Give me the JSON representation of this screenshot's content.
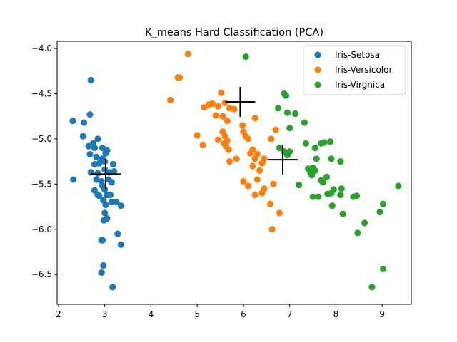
{
  "chart_data": {
    "type": "scatter",
    "title": "K_means Hard Classification (PCA)",
    "xlabel": "",
    "ylabel": "",
    "xlim": [
      1.97,
      9.63
    ],
    "ylim": [
      -6.83,
      -3.92
    ],
    "xticks": [
      2,
      3,
      4,
      5,
      6,
      7,
      8,
      9
    ],
    "yticks": [
      -4.0,
      -4.5,
      -5.0,
      -5.5,
      -6.0,
      -6.5
    ],
    "ytick_labels": [
      "−4.0",
      "−4.5",
      "−5.0",
      "−5.5",
      "−6.0",
      "−6.5"
    ],
    "grid": false,
    "legend_position": "upper right",
    "series": [
      {
        "name": "Iris-Setosa",
        "color": "#1f77b4",
        "marker": "circle",
        "points": [
          [
            2.7,
            -4.35
          ],
          [
            2.31,
            -4.8
          ],
          [
            2.55,
            -4.82
          ],
          [
            2.68,
            -4.73
          ],
          [
            2.53,
            -4.97
          ],
          [
            2.65,
            -5.08
          ],
          [
            2.75,
            -5.05
          ],
          [
            2.85,
            -5.0
          ],
          [
            2.78,
            -5.1
          ],
          [
            2.95,
            -5.1
          ],
          [
            3.05,
            -5.13
          ],
          [
            2.68,
            -5.17
          ],
          [
            2.82,
            -5.2
          ],
          [
            2.95,
            -5.22
          ],
          [
            3.02,
            -5.16
          ],
          [
            2.78,
            -5.28
          ],
          [
            2.88,
            -5.27
          ],
          [
            3.0,
            -5.25
          ],
          [
            3.18,
            -5.28
          ],
          [
            2.7,
            -5.37
          ],
          [
            2.85,
            -5.38
          ],
          [
            3.0,
            -5.34
          ],
          [
            3.1,
            -5.37
          ],
          [
            3.2,
            -5.36
          ],
          [
            2.32,
            -5.45
          ],
          [
            2.82,
            -5.45
          ],
          [
            2.93,
            -5.47
          ],
          [
            3.08,
            -5.45
          ],
          [
            3.15,
            -5.48
          ],
          [
            2.95,
            -5.52
          ],
          [
            3.0,
            -5.56
          ],
          [
            2.78,
            -5.57
          ],
          [
            2.85,
            -5.62
          ],
          [
            2.88,
            -5.63
          ],
          [
            3.05,
            -5.62
          ],
          [
            3.12,
            -5.62
          ],
          [
            2.97,
            -5.68
          ],
          [
            3.02,
            -5.73
          ],
          [
            3.15,
            -5.7
          ],
          [
            3.25,
            -5.7
          ],
          [
            3.35,
            -5.74
          ],
          [
            3.0,
            -5.82
          ],
          [
            2.98,
            -5.9
          ],
          [
            3.05,
            -5.88
          ],
          [
            3.28,
            -6.05
          ],
          [
            2.93,
            -6.12
          ],
          [
            2.95,
            -6.12
          ],
          [
            3.35,
            -6.17
          ],
          [
            2.97,
            -6.4
          ],
          [
            2.93,
            -6.48
          ],
          [
            3.17,
            -6.64
          ]
        ]
      },
      {
        "name": "Iris-Versicolor",
        "color": "#ff7f0e",
        "marker": "circle",
        "points": [
          [
            4.8,
            -4.06
          ],
          [
            4.58,
            -4.32
          ],
          [
            4.62,
            -4.32
          ],
          [
            4.42,
            -4.57
          ],
          [
            5.52,
            -4.49
          ],
          [
            5.33,
            -4.61
          ],
          [
            5.25,
            -4.62
          ],
          [
            5.15,
            -4.65
          ],
          [
            5.6,
            -4.6
          ],
          [
            5.45,
            -4.64
          ],
          [
            5.7,
            -4.66
          ],
          [
            5.8,
            -4.67
          ],
          [
            5.4,
            -4.74
          ],
          [
            5.55,
            -4.75
          ],
          [
            5.65,
            -4.8
          ],
          [
            6.25,
            -4.77
          ],
          [
            5.98,
            -4.85
          ],
          [
            6.0,
            -4.92
          ],
          [
            6.05,
            -4.97
          ],
          [
            5.55,
            -4.92
          ],
          [
            5.6,
            -4.97
          ],
          [
            5.65,
            -5.02
          ],
          [
            5.45,
            -5.01
          ],
          [
            5.58,
            -5.05
          ],
          [
            5.62,
            -5.08
          ],
          [
            5.68,
            -5.12
          ],
          [
            5.0,
            -4.96
          ],
          [
            5.12,
            -5.07
          ],
          [
            6.1,
            -5.0
          ],
          [
            6.7,
            -4.9
          ],
          [
            6.6,
            -5.0
          ],
          [
            6.2,
            -5.12
          ],
          [
            6.15,
            -5.16
          ],
          [
            6.3,
            -5.17
          ],
          [
            6.25,
            -5.22
          ],
          [
            6.45,
            -5.22
          ],
          [
            6.4,
            -5.27
          ],
          [
            5.7,
            -5.25
          ],
          [
            5.85,
            -5.22
          ],
          [
            6.2,
            -5.3
          ],
          [
            6.35,
            -5.35
          ],
          [
            6.0,
            -5.47
          ],
          [
            6.1,
            -5.52
          ],
          [
            6.3,
            -5.45
          ],
          [
            6.45,
            -5.55
          ],
          [
            6.65,
            -5.5
          ],
          [
            6.25,
            -5.62
          ],
          [
            6.4,
            -5.6
          ],
          [
            6.58,
            -5.72
          ],
          [
            6.78,
            -5.82
          ],
          [
            6.62,
            -6.0
          ]
        ]
      },
      {
        "name": "Iris-Virgnica",
        "color": "#2ca02c",
        "marker": "circle",
        "points": [
          [
            6.05,
            -4.09
          ],
          [
            6.88,
            -4.5
          ],
          [
            6.92,
            -4.52
          ],
          [
            6.75,
            -4.66
          ],
          [
            6.95,
            -4.71
          ],
          [
            7.12,
            -4.72
          ],
          [
            7.32,
            -4.82
          ],
          [
            7.0,
            -4.88
          ],
          [
            6.78,
            -5.1
          ],
          [
            6.88,
            -5.14
          ],
          [
            7.0,
            -5.14
          ],
          [
            6.95,
            -5.18
          ],
          [
            7.35,
            -5.05
          ],
          [
            7.55,
            -5.1
          ],
          [
            7.68,
            -5.05
          ],
          [
            7.75,
            -5.04
          ],
          [
            7.88,
            -5.03
          ],
          [
            8.1,
            -5.25
          ],
          [
            7.9,
            -5.22
          ],
          [
            7.58,
            -5.22
          ],
          [
            7.4,
            -5.33
          ],
          [
            7.5,
            -5.32
          ],
          [
            7.55,
            -5.35
          ],
          [
            7.45,
            -5.37
          ],
          [
            7.48,
            -5.4
          ],
          [
            7.8,
            -5.42
          ],
          [
            7.68,
            -5.46
          ],
          [
            7.72,
            -5.48
          ],
          [
            7.95,
            -5.56
          ],
          [
            8.12,
            -5.55
          ],
          [
            7.9,
            -5.6
          ],
          [
            8.1,
            -5.62
          ],
          [
            7.82,
            -5.61
          ],
          [
            7.5,
            -5.64
          ],
          [
            7.62,
            -5.64
          ],
          [
            7.2,
            -5.51
          ],
          [
            8.38,
            -5.64
          ],
          [
            8.45,
            -5.63
          ],
          [
            8.15,
            -5.83
          ],
          [
            7.92,
            -5.74
          ],
          [
            9.02,
            -5.72
          ],
          [
            8.95,
            -5.81
          ],
          [
            8.62,
            -5.93
          ],
          [
            8.47,
            -6.04
          ],
          [
            9.35,
            -5.52
          ],
          [
            9.02,
            -6.44
          ],
          [
            8.78,
            -6.64
          ]
        ]
      }
    ],
    "centroids": [
      {
        "x": 3.02,
        "y": -5.39
      },
      {
        "x": 5.93,
        "y": -4.59
      },
      {
        "x": 6.85,
        "y": -5.23
      }
    ]
  }
}
